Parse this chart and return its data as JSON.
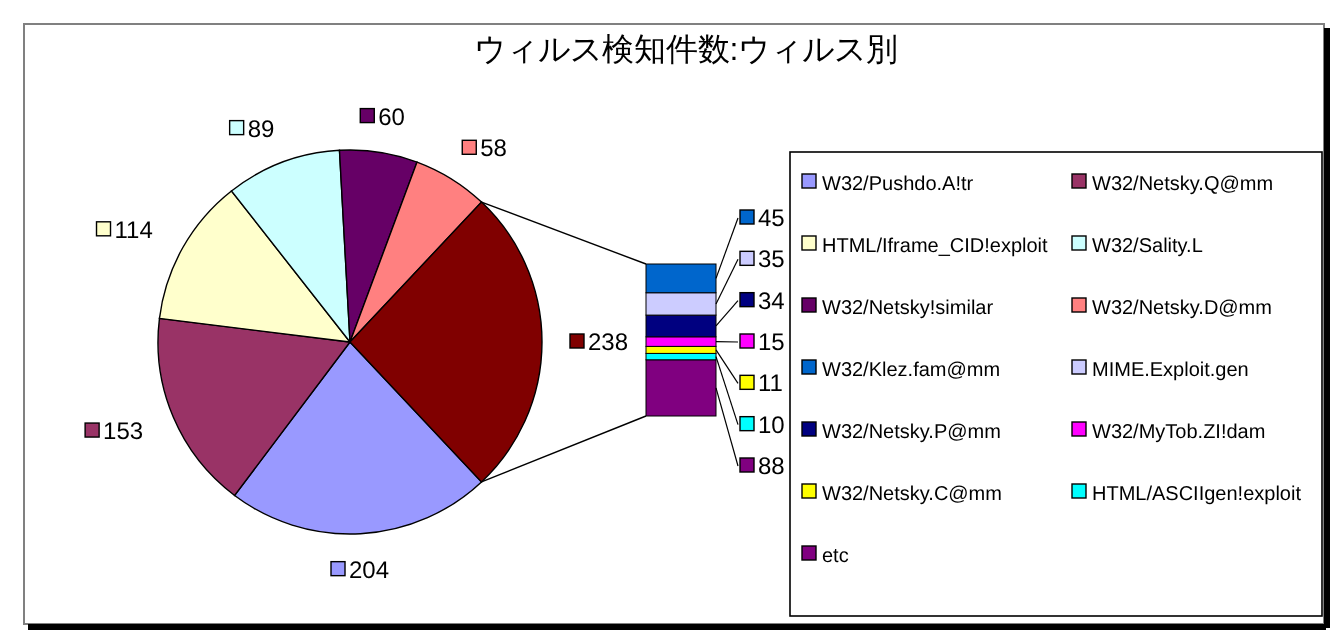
{
  "chart_data": [
    {
      "type": "pie",
      "title": "ウィルス検知件数:ウィルス別",
      "categories": [
        "W32/Pushdo.A!tr",
        "W32/Netsky.Q@mm",
        "HTML/Iframe_CID!exploit",
        "W32/Sality.L",
        "W32/Netsky!similar",
        "W32/Netsky.D@mm",
        null
      ],
      "values": [
        204,
        153,
        114,
        89,
        60,
        58,
        238
      ],
      "colors": [
        "#9999ff",
        "#993366",
        "#ffffcc",
        "#ccffff",
        "#660066",
        "#ff8080",
        "#800000"
      ],
      "data_labels": true,
      "legend": "right"
    },
    {
      "type": "bar",
      "stacked": true,
      "categories": [
        null
      ],
      "series": [
        {
          "name": "etc",
          "color": "#800080",
          "values": [
            88
          ]
        },
        {
          "name": "HTML/ASCIIgen!exploit",
          "color": "#00ffff",
          "values": [
            10
          ]
        },
        {
          "name": "W32/Netsky.C@mm",
          "color": "#ffff00",
          "values": [
            11
          ]
        },
        {
          "name": "W32/MyTob.ZI!dam",
          "color": "#ff00ff",
          "values": [
            15
          ]
        },
        {
          "name": "W32/Netsky.P@mm",
          "color": "#000080",
          "values": [
            34
          ]
        },
        {
          "name": "MIME.Exploit.gen",
          "color": "#ccccff",
          "values": [
            35
          ]
        },
        {
          "name": "W32/Klez.fam@mm",
          "color": "#0066cc",
          "values": [
            45
          ]
        }
      ],
      "data_labels": true,
      "legend": "right"
    }
  ]
}
